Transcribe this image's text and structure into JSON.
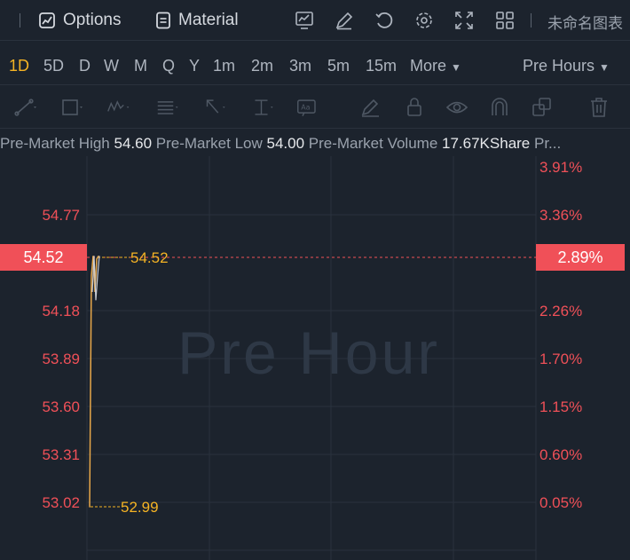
{
  "toolbar": {
    "options_label": "Options",
    "material_label": "Material",
    "chart_name": "未命名图表",
    "icons": [
      "options-icon",
      "material-icon",
      "indicator-icon",
      "draw-icon",
      "undo-icon",
      "settings-icon",
      "fullscreen-icon",
      "layout-icon"
    ]
  },
  "timeframes": {
    "items": [
      "1D",
      "5D",
      "D",
      "W",
      "M",
      "Q",
      "Y",
      "1m",
      "2m",
      "3m",
      "5m",
      "15m"
    ],
    "active": "1D",
    "more_label": "More",
    "session_label": "Pre Hours"
  },
  "drawing_tools": [
    "trend-line-icon",
    "rectangle-icon",
    "pattern-icon",
    "fib-icon",
    "arrow-icon",
    "measure-icon",
    "text-icon",
    "brush-icon",
    "lock-icon",
    "visibility-icon",
    "magnet-icon",
    "copy-icon",
    "trash-icon"
  ],
  "info": {
    "high_label": "Pre-Market High",
    "high_value": "54.60",
    "low_label": "Pre-Market Low",
    "low_value": "54.00",
    "volume_label": "Pre-Market Volume",
    "volume_value": "17.67KShare",
    "trailing": "Pr..."
  },
  "chart_data": {
    "type": "line",
    "watermark": "Pre Hour",
    "y_left_ticks": [
      "54.77",
      "54.18",
      "53.89",
      "53.60",
      "53.31",
      "53.02"
    ],
    "y_right_ticks": [
      "3.91%",
      "3.36%",
      "2.26%",
      "1.70%",
      "1.15%",
      "0.60%",
      "0.05%"
    ],
    "current_price": "54.52",
    "current_change": "2.89%",
    "high_marker": "54.52",
    "low_marker": "52.99",
    "price_series": [
      52.99,
      54.4,
      54.52,
      54.45,
      54.3,
      54.5,
      54.52
    ],
    "colors": {
      "line": "#e8a84a",
      "price_axis": "#f05058",
      "marker": "#f5b324",
      "grid": "#2a323d"
    }
  }
}
